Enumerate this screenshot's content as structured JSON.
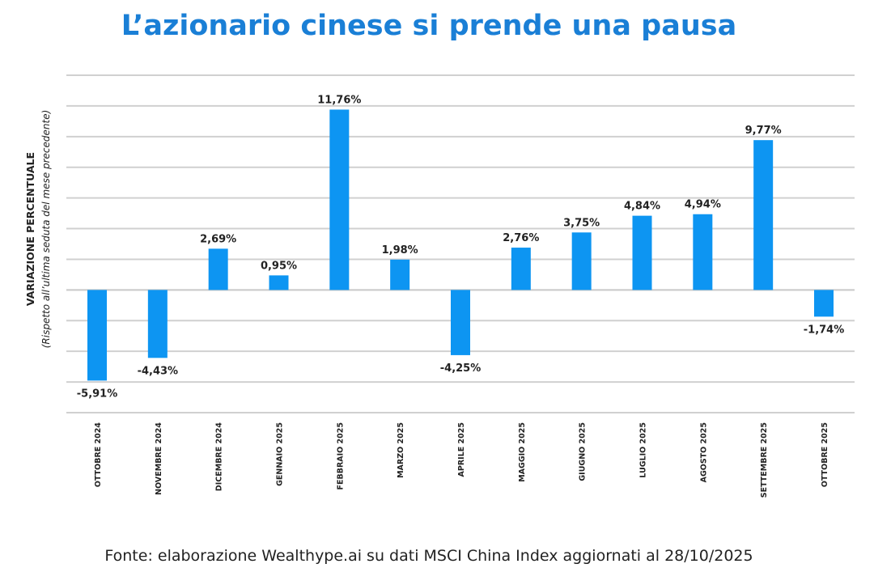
{
  "chart_data": {
    "type": "bar",
    "title": "L’azionario cinese si prende una pausa",
    "ylabel": "VARIAZIONE PERCENTUALE",
    "ylabel_sub": "(Rispetto all’ultima seduta del mese precedente)",
    "xlabel": "",
    "categories": [
      "OTTOBRE 2024",
      "NOVEMBRE 2024",
      "DICEMBRE 2024",
      "GENNAIO 2025",
      "FEBBRAIO 2025",
      "MARZO 2025",
      "APRILE 2025",
      "MAGGIO 2025",
      "GIUGNO 2025",
      "LUGLIO 2025",
      "AGOSTO 2025",
      "SETTEMBRE 2025",
      "OTTOBRE 2025"
    ],
    "values": [
      -5.91,
      -4.43,
      2.69,
      0.95,
      11.76,
      1.98,
      -4.25,
      2.76,
      3.75,
      4.84,
      4.94,
      9.77,
      -1.74
    ],
    "data_labels": [
      "-5,91%",
      "-4,43%",
      "2,69%",
      "0,95%",
      "11,76%",
      "1,98%",
      "-4,25%",
      "2,76%",
      "3,75%",
      "4,84%",
      "4,94%",
      "9,77%",
      "-1,74%"
    ],
    "ylim": [
      -8,
      14
    ],
    "grid_step": 2,
    "grid": true,
    "legend": "none",
    "bar_color": "#0d95f2"
  },
  "source": "Fonte: elaborazione Wealthype.ai su dati MSCI China Index aggiornati al 28/10/2025",
  "colors": {
    "title": "#1a7fd6",
    "bar": "#0d95f2",
    "grid": "#d0d0d0",
    "text": "#222222"
  }
}
